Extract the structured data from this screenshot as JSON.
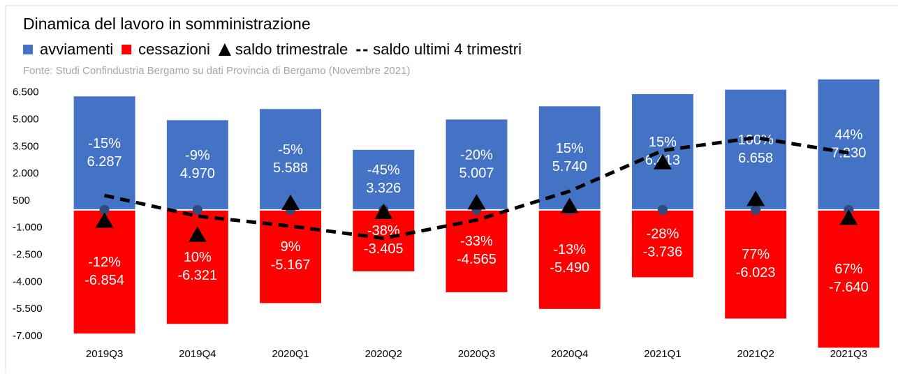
{
  "chart_data": {
    "type": "bar",
    "title": "Dinamica del lavoro in somministrazione",
    "source": "Fonte: Studi Confindustria Bergamo su dati Provincia di Bergamo (Novembre 2021)",
    "categories": [
      "2019Q3",
      "2019Q4",
      "2020Q1",
      "2020Q2",
      "2020Q3",
      "2020Q4",
      "2021Q1",
      "2021Q2",
      "2021Q3"
    ],
    "series": [
      {
        "name": "avviamenti",
        "color": "#4472c4",
        "kind": "bar",
        "values": [
          6287,
          4970,
          5588,
          3326,
          5007,
          5740,
          6413,
          6658,
          7230
        ],
        "value_labels": [
          "6.287",
          "4.970",
          "5.588",
          "3.326",
          "5.007",
          "5.740",
          "6.413",
          "6.658",
          "7.230"
        ],
        "change_labels": [
          "-15%",
          "-9%",
          "-5%",
          "-45%",
          "-20%",
          "15%",
          "15%",
          "100%",
          "44%"
        ]
      },
      {
        "name": "cessazioni",
        "color": "#ff0000",
        "kind": "bar",
        "values": [
          -6854,
          -6321,
          -5167,
          -3405,
          -4565,
          -5490,
          -3736,
          -6023,
          -7640
        ],
        "value_labels": [
          "-6.854",
          "-6.321",
          "-5.167",
          "-3.405",
          "-4.565",
          "-5.490",
          "-3.736",
          "-6.023",
          "-7.640"
        ],
        "change_labels": [
          "-12%",
          "10%",
          "9%",
          "-38%",
          "-33%",
          "-13%",
          "-28%",
          "77%",
          "67%"
        ]
      },
      {
        "name": "saldo trimestrale",
        "color": "#000000",
        "kind": "triangle",
        "values": [
          -567,
          -1351,
          421,
          -79,
          442,
          250,
          2677,
          635,
          -410
        ]
      },
      {
        "name": "saldo ultimi 4 trimestri",
        "color": "#000000",
        "kind": "dashed",
        "values": [
          800,
          -350,
          -900,
          -1576,
          -567,
          1034,
          3290,
          4004,
          3152
        ]
      }
    ],
    "ylim": [
      -7700,
      7300
    ],
    "yticks": [
      {
        "value": 6500,
        "label": "6.500"
      },
      {
        "value": 5000,
        "label": "5.000"
      },
      {
        "value": 3500,
        "label": "3.500"
      },
      {
        "value": 2000,
        "label": "2.000"
      },
      500,
      {
        "value": -1000,
        "label": "-1.000"
      },
      {
        "value": -2500,
        "label": "-2.500"
      },
      {
        "value": -4000,
        "label": "-4.000"
      },
      {
        "value": -5500,
        "label": "-5.500"
      },
      {
        "value": -7000,
        "label": "-7.000"
      }
    ],
    "grid": false
  }
}
